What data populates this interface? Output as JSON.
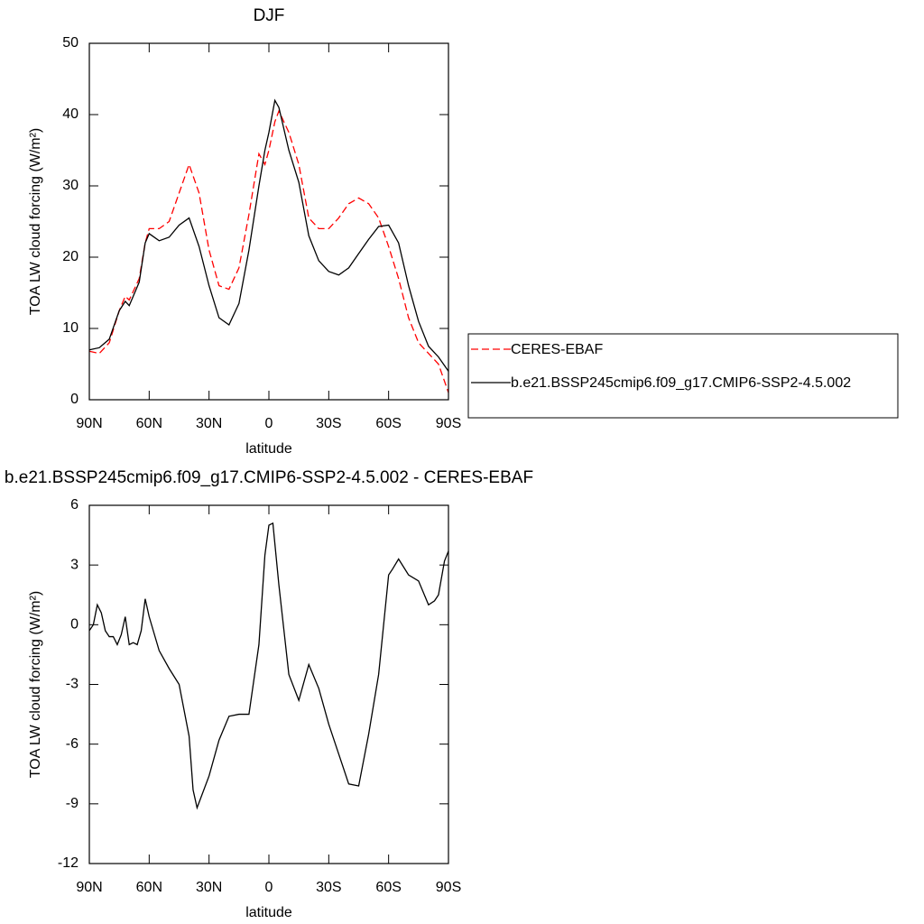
{
  "chart_data": [
    {
      "type": "line",
      "title": "DJF",
      "xlabel": "latitude",
      "ylabel": "TOA LW cloud forcing (W/m²)",
      "x": [
        90,
        85,
        80,
        75,
        72,
        70,
        65,
        62,
        60,
        55,
        50,
        45,
        40,
        35,
        30,
        25,
        20,
        15,
        10,
        5,
        2,
        0,
        -3,
        -5,
        -10,
        -15,
        -20,
        -25,
        -30,
        -35,
        -40,
        -45,
        -50,
        -55,
        -60,
        -65,
        -70,
        -75,
        -80,
        -85,
        -90
      ],
      "xlim": [
        90,
        -90
      ],
      "xticks": [
        {
          "value": 90,
          "label": "90N"
        },
        {
          "value": 60,
          "label": "60N"
        },
        {
          "value": 30,
          "label": "30N"
        },
        0,
        {
          "value": -30,
          "label": "30S"
        },
        {
          "value": -60,
          "label": "60S"
        },
        {
          "value": -90,
          "label": "90S"
        }
      ],
      "ylim": [
        0,
        50
      ],
      "yticks": [
        0,
        10,
        20,
        30,
        40,
        50
      ],
      "legend": "right",
      "series": [
        {
          "name": "CERES-EBAF",
          "color": "#ff0000",
          "style": "dashed",
          "values": [
            6.8,
            6.5,
            8,
            12.5,
            14.5,
            14,
            17,
            22,
            24,
            24,
            25,
            29,
            33,
            29,
            21,
            16,
            15.5,
            18.5,
            26,
            34.5,
            33,
            35,
            39,
            40.5,
            37.5,
            33,
            25.5,
            24,
            24,
            25.5,
            27.5,
            28.3,
            27.5,
            25.5,
            21.5,
            17,
            11.5,
            8,
            6.5,
            5,
            1
          ]
        },
        {
          "name": "b.e21.BSSP245cmip6.f09_g17.CMIP6-SSP2-4.5.002",
          "color": "#000000",
          "style": "solid",
          "values": [
            7,
            7.3,
            8.5,
            12.5,
            13.8,
            13.2,
            16.5,
            22,
            23.3,
            22.3,
            22.8,
            24.5,
            25.5,
            21.5,
            16,
            11.5,
            10.5,
            13.5,
            21,
            30,
            35,
            37.5,
            42,
            41,
            35,
            30.5,
            23,
            19.5,
            18,
            17.5,
            18.5,
            20.5,
            22.5,
            24.3,
            24.5,
            22,
            16,
            11,
            7.5,
            6,
            4
          ]
        }
      ]
    },
    {
      "type": "line",
      "title": "b.e21.BSSP245cmip6.f09_g17.CMIP6-SSP2-4.5.002 - CERES-EBAF",
      "xlabel": "latitude",
      "ylabel": "TOA LW cloud forcing (W/m²)",
      "x": [
        90,
        88,
        86,
        84,
        82,
        80,
        78,
        76,
        74,
        72,
        70,
        68,
        66,
        64,
        62,
        60,
        55,
        50,
        45,
        40,
        38,
        36,
        30,
        25,
        20,
        15,
        10,
        5,
        2,
        0,
        -2,
        -5,
        -10,
        -15,
        -20,
        -25,
        -30,
        -35,
        -40,
        -45,
        -50,
        -55,
        -60,
        -62,
        -65,
        -70,
        -75,
        -80,
        -83,
        -85,
        -88,
        -90
      ],
      "xlim": [
        90,
        -90
      ],
      "xticks": [
        {
          "value": 90,
          "label": "90N"
        },
        {
          "value": 60,
          "label": "60N"
        },
        {
          "value": 30,
          "label": "30N"
        },
        0,
        {
          "value": -30,
          "label": "30S"
        },
        {
          "value": -60,
          "label": "60S"
        },
        {
          "value": -90,
          "label": "90S"
        }
      ],
      "ylim": [
        -12,
        6
      ],
      "yticks": [
        -12,
        -9,
        -6,
        -3,
        0,
        3,
        6
      ],
      "series": [
        {
          "color": "#000000",
          "style": "solid",
          "values": [
            -0.3,
            0,
            1,
            0.6,
            -0.3,
            -0.6,
            -0.6,
            -1,
            -0.5,
            0.4,
            -1,
            -0.9,
            -1,
            -0.3,
            1.3,
            0.4,
            -1.3,
            -2.2,
            -3,
            -5.6,
            -8.3,
            -9.2,
            -7.6,
            -5.8,
            -4.6,
            -4.5,
            -4.5,
            -1,
            3.5,
            5,
            5.1,
            2,
            -2.5,
            -3.8,
            -2,
            -3.2,
            -5,
            -6.5,
            -8,
            -8.1,
            -5.5,
            -2.5,
            2.5,
            2.8,
            3.3,
            2.5,
            2.2,
            1,
            1.2,
            1.5,
            3.2,
            3.7
          ]
        }
      ]
    }
  ]
}
